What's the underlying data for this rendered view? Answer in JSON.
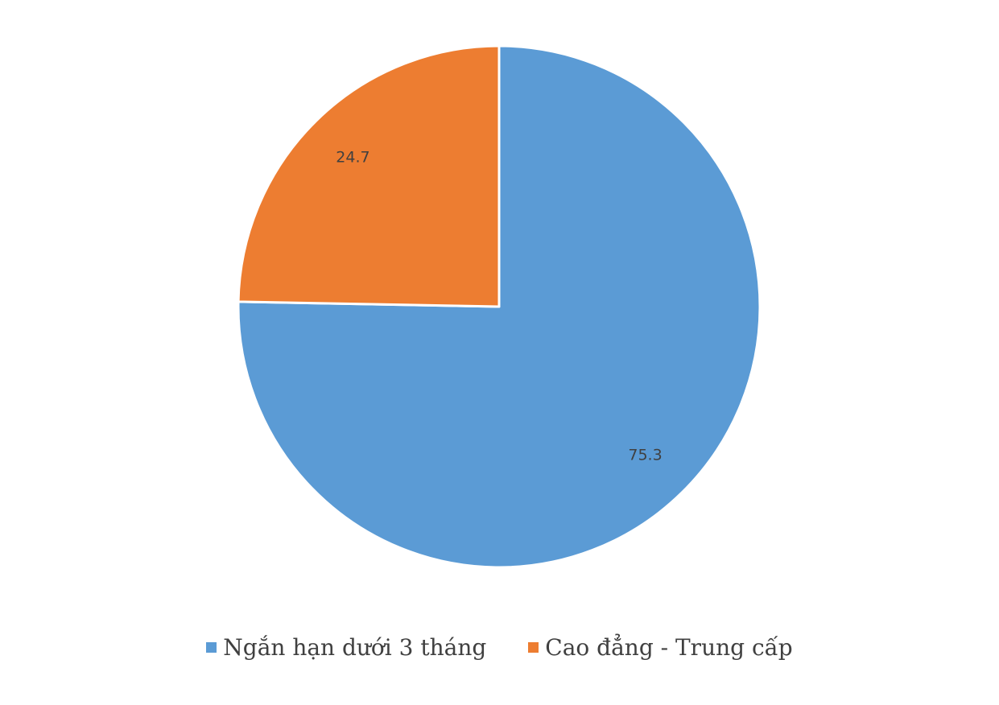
{
  "chart_data": {
    "type": "pie",
    "categories": [
      "Ngắn hạn dưới 3 tháng",
      "Cao đẳng - Trung cấp"
    ],
    "values": [
      75.3,
      24.7
    ],
    "value_labels": [
      "75.3",
      "24.7"
    ],
    "colors": [
      "#5B9BD5",
      "#ED7D31"
    ],
    "title": "",
    "legend_position": "bottom",
    "start_angle": "12 o'clock",
    "direction": "clockwise"
  }
}
